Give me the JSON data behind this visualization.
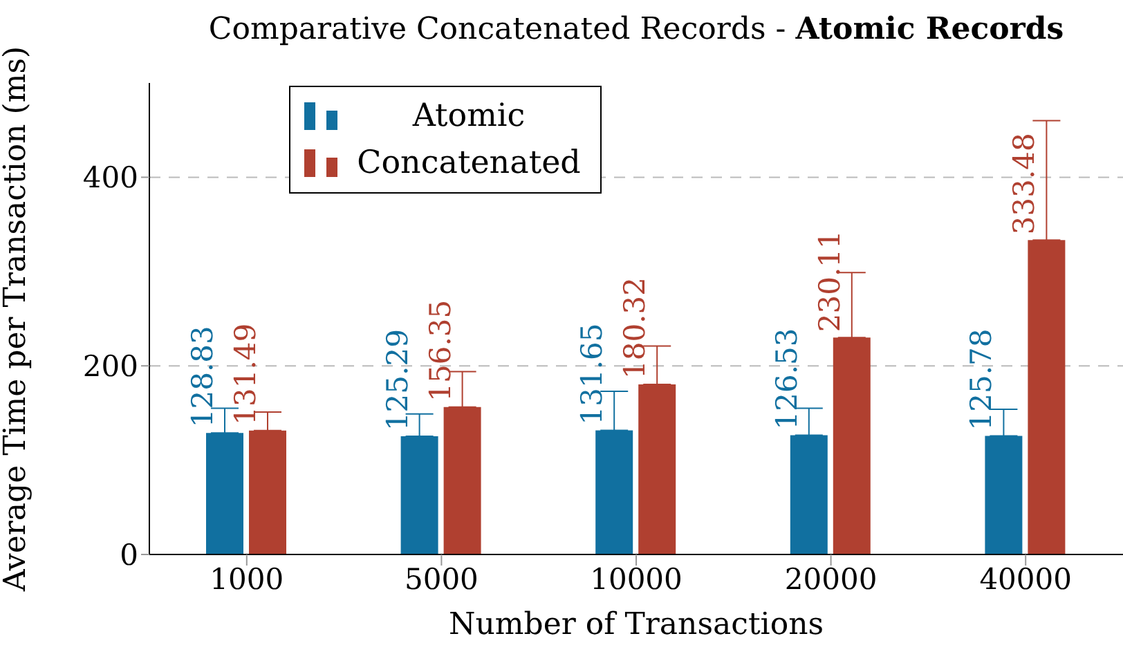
{
  "chart_data": {
    "type": "bar",
    "title": "Comparative Concatenated Records - Atomic Records",
    "xlabel": "Number of Transactions",
    "ylabel": "Average Time per Transaction (ms)",
    "categories": [
      "1000",
      "5000",
      "10000",
      "20000",
      "40000"
    ],
    "series": [
      {
        "name": "Atomic",
        "color": "#1170a0",
        "values": [
          128.83,
          125.29,
          131.65,
          126.53,
          125.78
        ],
        "errors": [
          [
            128.83,
            155
          ],
          [
            125.29,
            149
          ],
          [
            131.65,
            173
          ],
          [
            126.53,
            155
          ],
          [
            125.78,
            154
          ]
        ]
      },
      {
        "name": "Concatenated",
        "color": "#b04030",
        "values": [
          131.49,
          156.35,
          180.32,
          230.11,
          333.48
        ],
        "errors": [
          [
            131.49,
            151
          ],
          [
            156.35,
            194
          ],
          [
            180.32,
            221
          ],
          [
            230.11,
            299
          ],
          [
            333.48,
            460
          ]
        ]
      }
    ],
    "ylim": [
      0,
      500
    ],
    "yticks": [
      0,
      200,
      400
    ],
    "grid": "y",
    "legend": "top left",
    "data_labels": true
  }
}
